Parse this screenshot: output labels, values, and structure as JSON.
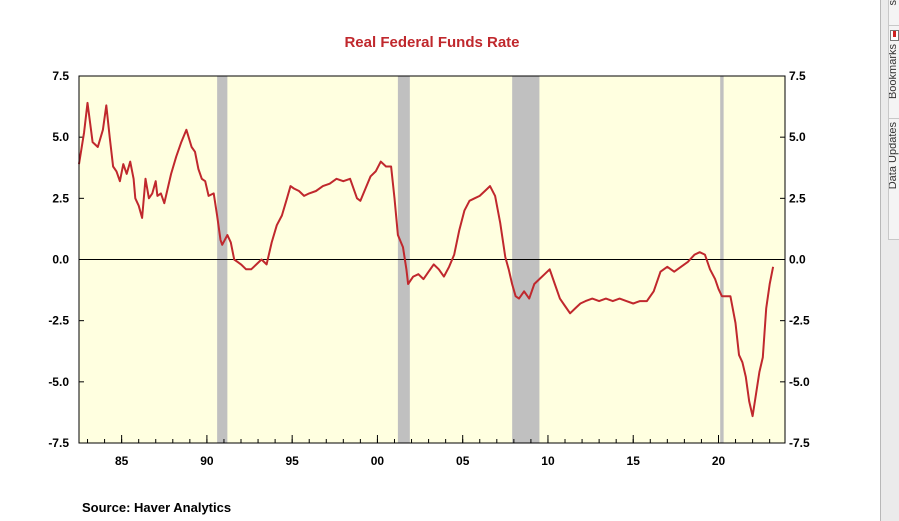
{
  "chart_data": {
    "type": "line",
    "title": "Real Federal Funds Rate",
    "source": "Source:  Haver Analytics",
    "xlim": [
      1982.5,
      2023.9
    ],
    "ylim": [
      -7.5,
      7.5
    ],
    "x_ticks": [
      {
        "value": 1985,
        "label": "85"
      },
      {
        "value": 1990,
        "label": "90"
      },
      {
        "value": 1995,
        "label": "95"
      },
      {
        "value": 2000,
        "label": "00"
      },
      {
        "value": 2005,
        "label": "05"
      },
      {
        "value": 2010,
        "label": "10"
      },
      {
        "value": 2015,
        "label": "15"
      },
      {
        "value": 2020,
        "label": "20"
      }
    ],
    "y_ticks": [
      {
        "value": 7.5,
        "label": "7.5"
      },
      {
        "value": 5.0,
        "label": "5.0"
      },
      {
        "value": 2.5,
        "label": "2.5"
      },
      {
        "value": 0.0,
        "label": "0.0"
      },
      {
        "value": -2.5,
        "label": "-2.5"
      },
      {
        "value": -5.0,
        "label": "-5.0"
      },
      {
        "value": -7.5,
        "label": "-7.5"
      }
    ],
    "recessions": [
      [
        1990.6,
        1991.2
      ],
      [
        2001.2,
        2001.9
      ],
      [
        2007.9,
        2009.5
      ],
      [
        2020.1,
        2020.3
      ]
    ],
    "zero_line": true,
    "colors": {
      "line": "#c0282d",
      "shade": "#c0c0c0",
      "plot_bg": "#ffffe0",
      "title": "#c0282d"
    },
    "series": [
      {
        "x": [
          1982.5,
          1982.8,
          1983.0,
          1983.3,
          1983.6,
          1983.9,
          1984.1,
          1984.3,
          1984.5,
          1984.7,
          1984.9,
          1985.1,
          1985.3,
          1985.5,
          1985.7,
          1985.8,
          1986.0,
          1986.2,
          1986.4,
          1986.6,
          1986.8,
          1987.0,
          1987.1,
          1987.3,
          1987.5,
          1987.7,
          1987.9,
          1988.2,
          1988.5,
          1988.8,
          1989.1,
          1989.3,
          1989.5,
          1989.7,
          1989.9,
          1990.1,
          1990.4,
          1990.6,
          1990.8,
          1990.9,
          1991.2,
          1991.4,
          1991.6,
          1991.8,
          1992.0,
          1992.3,
          1992.6,
          1992.9,
          1993.2,
          1993.5,
          1993.8,
          1994.1,
          1994.4,
          1994.7,
          1994.9,
          1995.1,
          1995.4,
          1995.7,
          1996.0,
          1996.4,
          1996.8,
          1997.2,
          1997.6,
          1998.0,
          1998.4,
          1998.8,
          1999.0,
          1999.3,
          1999.6,
          1999.9,
          2000.2,
          2000.5,
          2000.8,
          2001.0,
          2001.2,
          2001.5,
          2001.7,
          2001.8,
          2002.1,
          2002.4,
          2002.7,
          2003.0,
          2003.3,
          2003.6,
          2003.9,
          2004.2,
          2004.5,
          2004.8,
          2005.1,
          2005.4,
          2005.7,
          2006.0,
          2006.3,
          2006.6,
          2006.9,
          2007.2,
          2007.5,
          2007.7,
          2007.9,
          2008.1,
          2008.3,
          2008.6,
          2008.9,
          2009.2,
          2009.5,
          2009.8,
          2010.1,
          2010.4,
          2010.7,
          2011.0,
          2011.3,
          2011.6,
          2011.9,
          2012.2,
          2012.6,
          2013.0,
          2013.4,
          2013.8,
          2014.2,
          2014.6,
          2015.0,
          2015.4,
          2015.8,
          2016.2,
          2016.6,
          2017.0,
          2017.4,
          2017.8,
          2018.2,
          2018.6,
          2018.9,
          2019.2,
          2019.5,
          2019.8,
          2020.0,
          2020.2,
          2020.4,
          2020.7,
          2021.0,
          2021.2,
          2021.4,
          2021.6,
          2021.8,
          2022.0,
          2022.2,
          2022.4,
          2022.6,
          2022.8,
          2023.0,
          2023.2
        ],
        "y": [
          3.9,
          5.2,
          6.4,
          4.8,
          4.6,
          5.3,
          6.3,
          5.0,
          3.8,
          3.6,
          3.2,
          3.9,
          3.5,
          4.0,
          3.3,
          2.5,
          2.2,
          1.7,
          3.3,
          2.5,
          2.7,
          3.2,
          2.6,
          2.7,
          2.3,
          2.9,
          3.5,
          4.2,
          4.8,
          5.3,
          4.6,
          4.4,
          3.7,
          3.3,
          3.2,
          2.6,
          2.7,
          1.8,
          0.8,
          0.6,
          1.0,
          0.7,
          0.0,
          -0.1,
          -0.2,
          -0.4,
          -0.4,
          -0.2,
          0.0,
          -0.2,
          0.7,
          1.4,
          1.8,
          2.5,
          3.0,
          2.9,
          2.8,
          2.6,
          2.7,
          2.8,
          3.0,
          3.1,
          3.3,
          3.2,
          3.3,
          2.5,
          2.4,
          2.9,
          3.4,
          3.6,
          4.0,
          3.8,
          3.8,
          2.5,
          1.0,
          0.5,
          -0.4,
          -1.0,
          -0.7,
          -0.6,
          -0.8,
          -0.5,
          -0.2,
          -0.4,
          -0.7,
          -0.3,
          0.2,
          1.2,
          2.0,
          2.4,
          2.5,
          2.6,
          2.8,
          3.0,
          2.6,
          1.5,
          0.1,
          -0.4,
          -1.0,
          -1.5,
          -1.6,
          -1.3,
          -1.6,
          -1.0,
          -0.8,
          -0.6,
          -0.4,
          -1.0,
          -1.6,
          -1.9,
          -2.2,
          -2.0,
          -1.8,
          -1.7,
          -1.6,
          -1.7,
          -1.6,
          -1.7,
          -1.6,
          -1.7,
          -1.8,
          -1.7,
          -1.7,
          -1.3,
          -0.5,
          -0.3,
          -0.5,
          -0.3,
          -0.1,
          0.2,
          0.3,
          0.2,
          -0.4,
          -0.8,
          -1.2,
          -1.5,
          -1.5,
          -1.5,
          -2.6,
          -3.9,
          -4.2,
          -4.8,
          -5.8,
          -6.4,
          -5.5,
          -4.6,
          -4.0,
          -2.0,
          -1.0,
          -0.3
        ]
      }
    ]
  },
  "side_panel": {
    "tabs": [
      "s",
      "Bookmarks",
      "Data Updates"
    ],
    "bookmark_icon": "bookmark-icon"
  }
}
